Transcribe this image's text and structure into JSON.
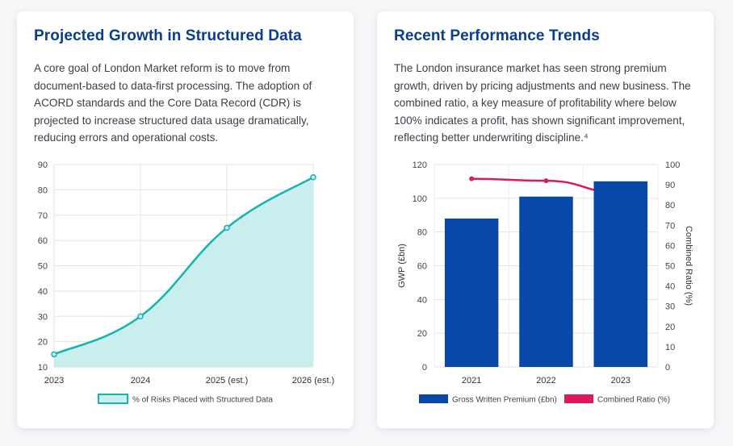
{
  "left_card": {
    "title": "Projected Growth in Structured Data",
    "body": "A core goal of London Market reform is to move from document-based to data-first processing. The adoption of ACORD standards and the Core Data Record (CDR) is projected to increase structured data usage dramatically, reducing errors and operational costs."
  },
  "right_card": {
    "title": "Recent Performance Trends",
    "body": "The London insurance market has seen strong premium growth, driven by pricing adjustments and new business. The combined ratio, a key measure of profitability where below 100% indicates a profit, has shown significant improvement, reflecting better underwriting discipline.⁴"
  },
  "chart_data": [
    {
      "type": "area",
      "categories": [
        "2023",
        "2024",
        "2025 (est.)",
        "2026 (est.)"
      ],
      "series": [
        {
          "name": "% of Risks Placed with Structured Data",
          "values": [
            15,
            30,
            65,
            85
          ]
        }
      ],
      "ylim": [
        10,
        90
      ],
      "yticks": [
        10,
        20,
        30,
        40,
        50,
        60,
        70,
        80,
        90
      ],
      "grid": true,
      "legend": "bottom",
      "colors": {
        "line": "#17b3b0",
        "fill": "#c9eeee"
      }
    },
    {
      "type": "bar",
      "categories": [
        "2021",
        "2022",
        "2023"
      ],
      "series": [
        {
          "name": "Gross Written Premium (£bn)",
          "type": "bar",
          "axis": "left",
          "values": [
            88,
            101,
            110
          ]
        },
        {
          "name": "Combined Ratio (%)",
          "type": "line",
          "axis": "right",
          "values": [
            93,
            92,
            86
          ]
        }
      ],
      "ylabel": "GWP (£bn)",
      "ylabel_right": "Combined Ratio (%)",
      "ylim": [
        0,
        120
      ],
      "yticks": [
        0,
        20,
        40,
        60,
        80,
        100,
        120
      ],
      "ylim_right": [
        0,
        100
      ],
      "yticks_right": [
        0,
        10,
        20,
        30,
        40,
        50,
        60,
        70,
        80,
        90,
        100
      ],
      "grid": true,
      "legend": "bottom",
      "colors": {
        "bar": "#0748a8",
        "line": "#e0165e"
      }
    }
  ]
}
